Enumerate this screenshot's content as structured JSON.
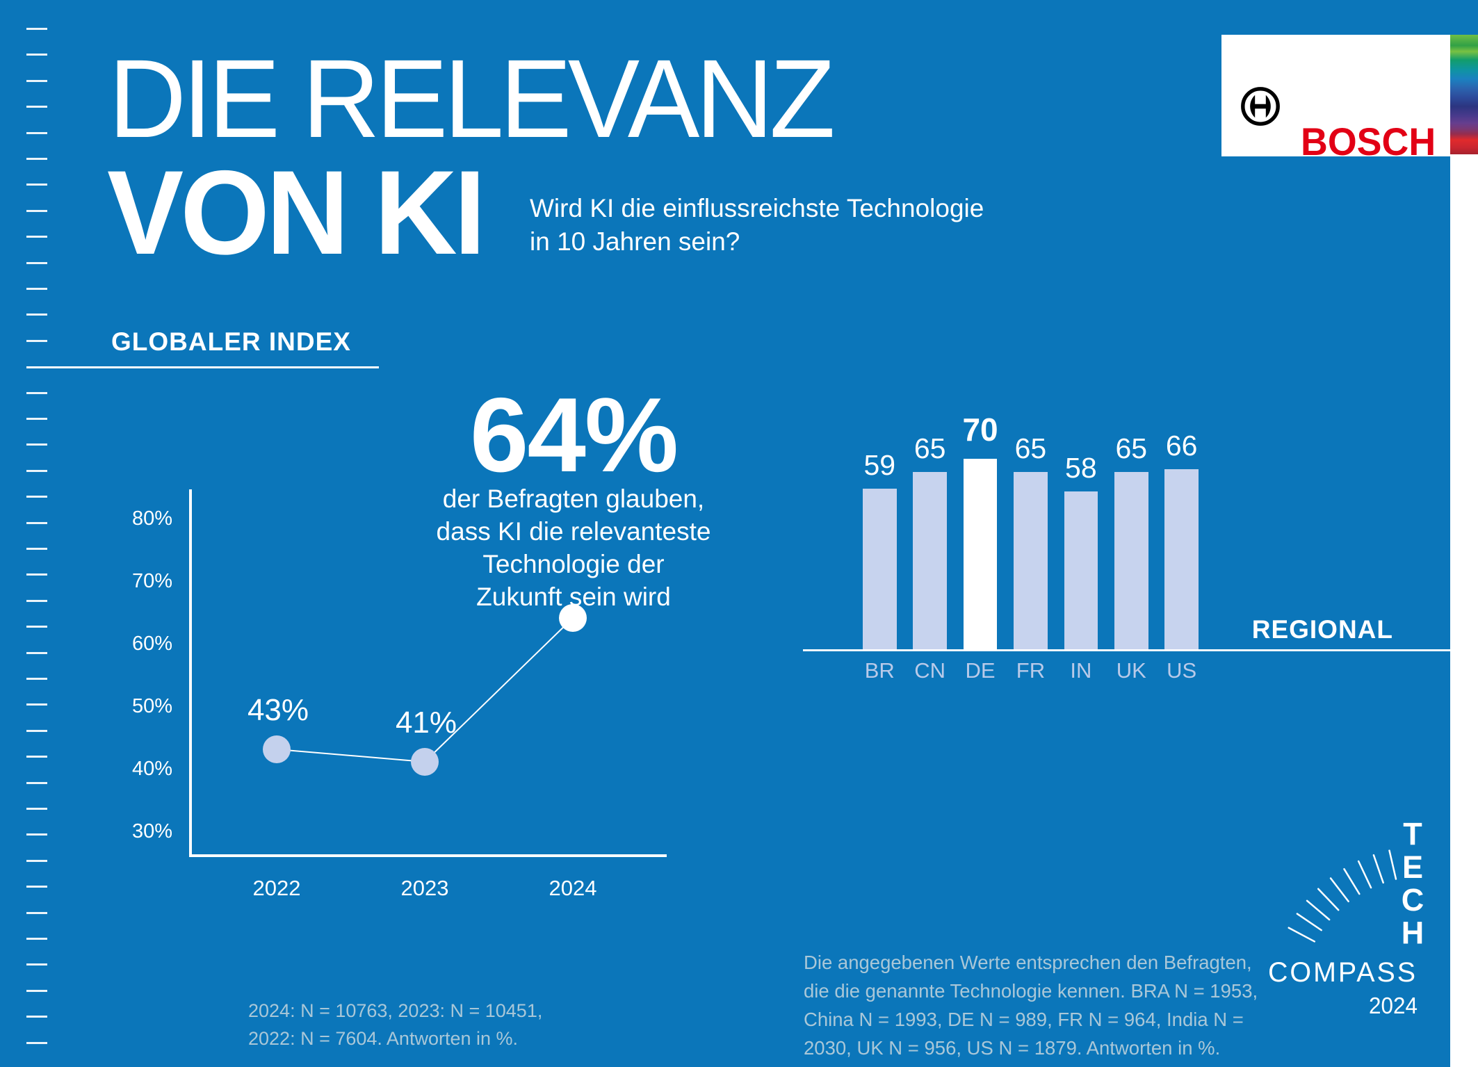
{
  "header": {
    "title_line1": "DIE RELEVANZ",
    "title_line2": "VON KI",
    "subtitle_lines": [
      "Wird KI die einflussreichste Technologie",
      "in 10 Jahren sein?"
    ]
  },
  "brand": {
    "name": "BOSCH"
  },
  "sections": {
    "global_index": "GLOBALER INDEX",
    "regional": "REGIONAL"
  },
  "stat": {
    "value": "64%",
    "description_lines": [
      "der Befragten glauben,",
      "dass KI die relevanteste",
      "Technologie der",
      "Zukunft sein wird"
    ]
  },
  "footnotes": {
    "left_lines": [
      "2024: N = 10763, 2023: N = 10451,",
      "2022: N = 7604. Antworten in %."
    ],
    "right_lines": [
      "Die angegebenen Werte entsprechen den Befragten,",
      "die die genannte Technologie kennen. BRA N = 1953,",
      "China N = 1993, DE N = 989, FR N = 964, India N =",
      "2030, UK N = 956, US N = 1879. Antworten in %."
    ]
  },
  "tech_compass": {
    "vertical_word": "TECH",
    "horizontal_word": "COMPASS",
    "year": "2024"
  },
  "colors": {
    "background": "#0B76BA",
    "bar_fill": "#C7D3EE",
    "bar_highlight": "#FFFFFF",
    "dot_fill": "#C4D1ED",
    "dot_highlight": "#FFFFFF",
    "country_label": "#B9CAE9",
    "footnote_text": "#A9C7D8",
    "bosch_red": "#E20015",
    "text_white": "#FFFFFF"
  },
  "chart_data": [
    {
      "type": "line",
      "title": "GLOBALER INDEX",
      "x": [
        "2022",
        "2023",
        "2024"
      ],
      "values": [
        43,
        41,
        64
      ],
      "point_labels": [
        "43%",
        "41%",
        ""
      ],
      "highlight_index": 2,
      "callout": "64% shown as large headline number",
      "yticks": [
        30,
        40,
        50,
        60,
        70,
        80
      ],
      "ytick_suffix": "%",
      "ylim": [
        30,
        85
      ],
      "grid": false,
      "legend": "none"
    },
    {
      "type": "bar",
      "title": "REGIONAL",
      "categories": [
        "BR",
        "CN",
        "DE",
        "FR",
        "IN",
        "UK",
        "US"
      ],
      "values": [
        59,
        65,
        70,
        65,
        58,
        65,
        66
      ],
      "highlight_category": "DE",
      "value_labels_shown": true,
      "ylim": [
        0,
        75
      ],
      "grid": false
    }
  ]
}
